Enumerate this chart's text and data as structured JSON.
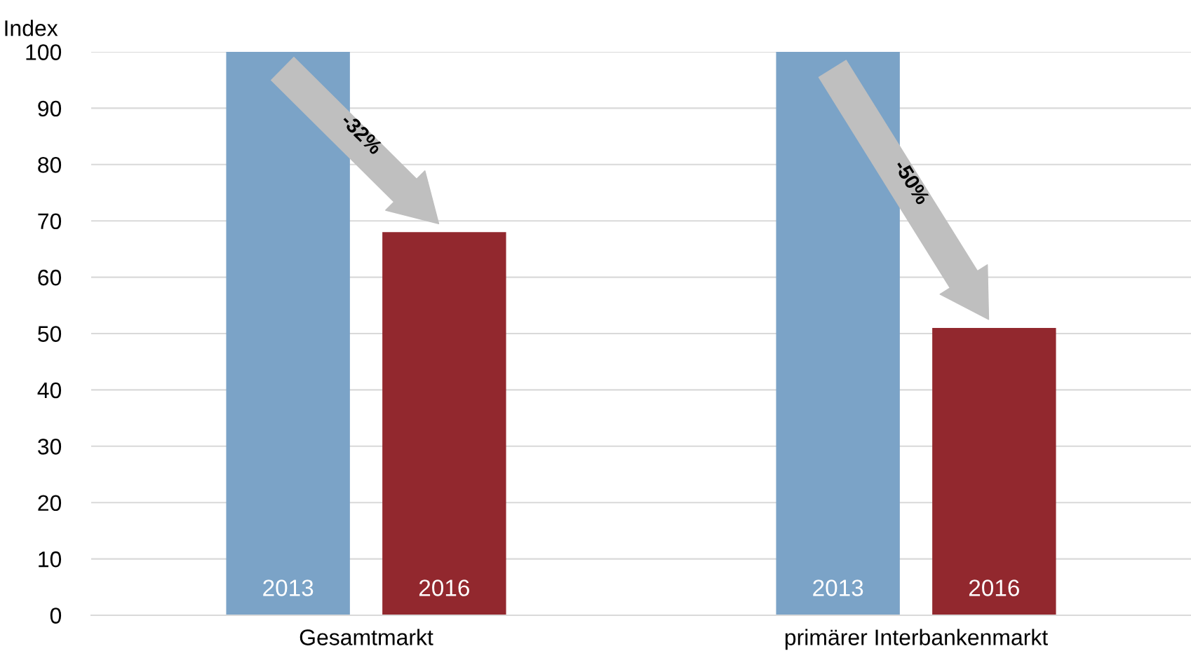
{
  "chart_data": {
    "type": "bar",
    "ylabel": "Index",
    "categories": [
      "Gesamtmarkt",
      "primärer Interbankenmarkt"
    ],
    "series": [
      {
        "name": "2013",
        "color": "#7ba3c7",
        "values": [
          100,
          100
        ]
      },
      {
        "name": "2016",
        "color": "#92282e",
        "values": [
          68,
          51
        ]
      }
    ],
    "ylim": [
      0,
      100
    ],
    "yticks": [
      0,
      10,
      20,
      30,
      40,
      50,
      60,
      70,
      80,
      90,
      100
    ],
    "grid": "y",
    "annotations": [
      "-32%",
      "-50%"
    ]
  }
}
